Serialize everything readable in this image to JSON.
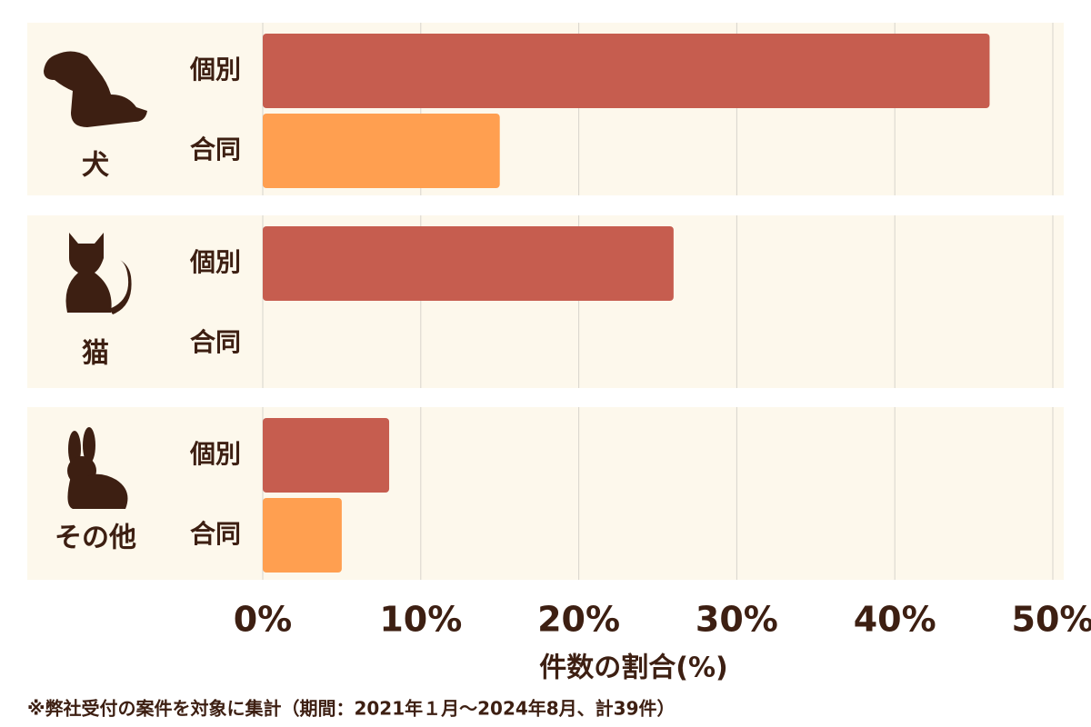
{
  "chart_data": {
    "type": "hbar",
    "categories": [
      "犬",
      "猫",
      "その他"
    ],
    "series": [
      {
        "name": "個別",
        "color": "#c65d4f",
        "values": [
          46,
          26,
          8
        ]
      },
      {
        "name": "合同",
        "color": "#ff9f50",
        "values": [
          15,
          0,
          5
        ]
      }
    ],
    "xlim": [
      0,
      50
    ],
    "xticks": [
      {
        "value": 0,
        "label": "0%"
      },
      {
        "value": 10,
        "label": "10%"
      },
      {
        "value": 20,
        "label": "20%"
      },
      {
        "value": 30,
        "label": "30%"
      },
      {
        "value": 40,
        "label": "40%"
      },
      {
        "value": 50,
        "label": "50%"
      }
    ],
    "xlabel": "件数の割合(%)",
    "grid": true,
    "note": "※弊社受付の案件を対象に集計（期間：2021年１月～2024年8月、計39件）"
  }
}
